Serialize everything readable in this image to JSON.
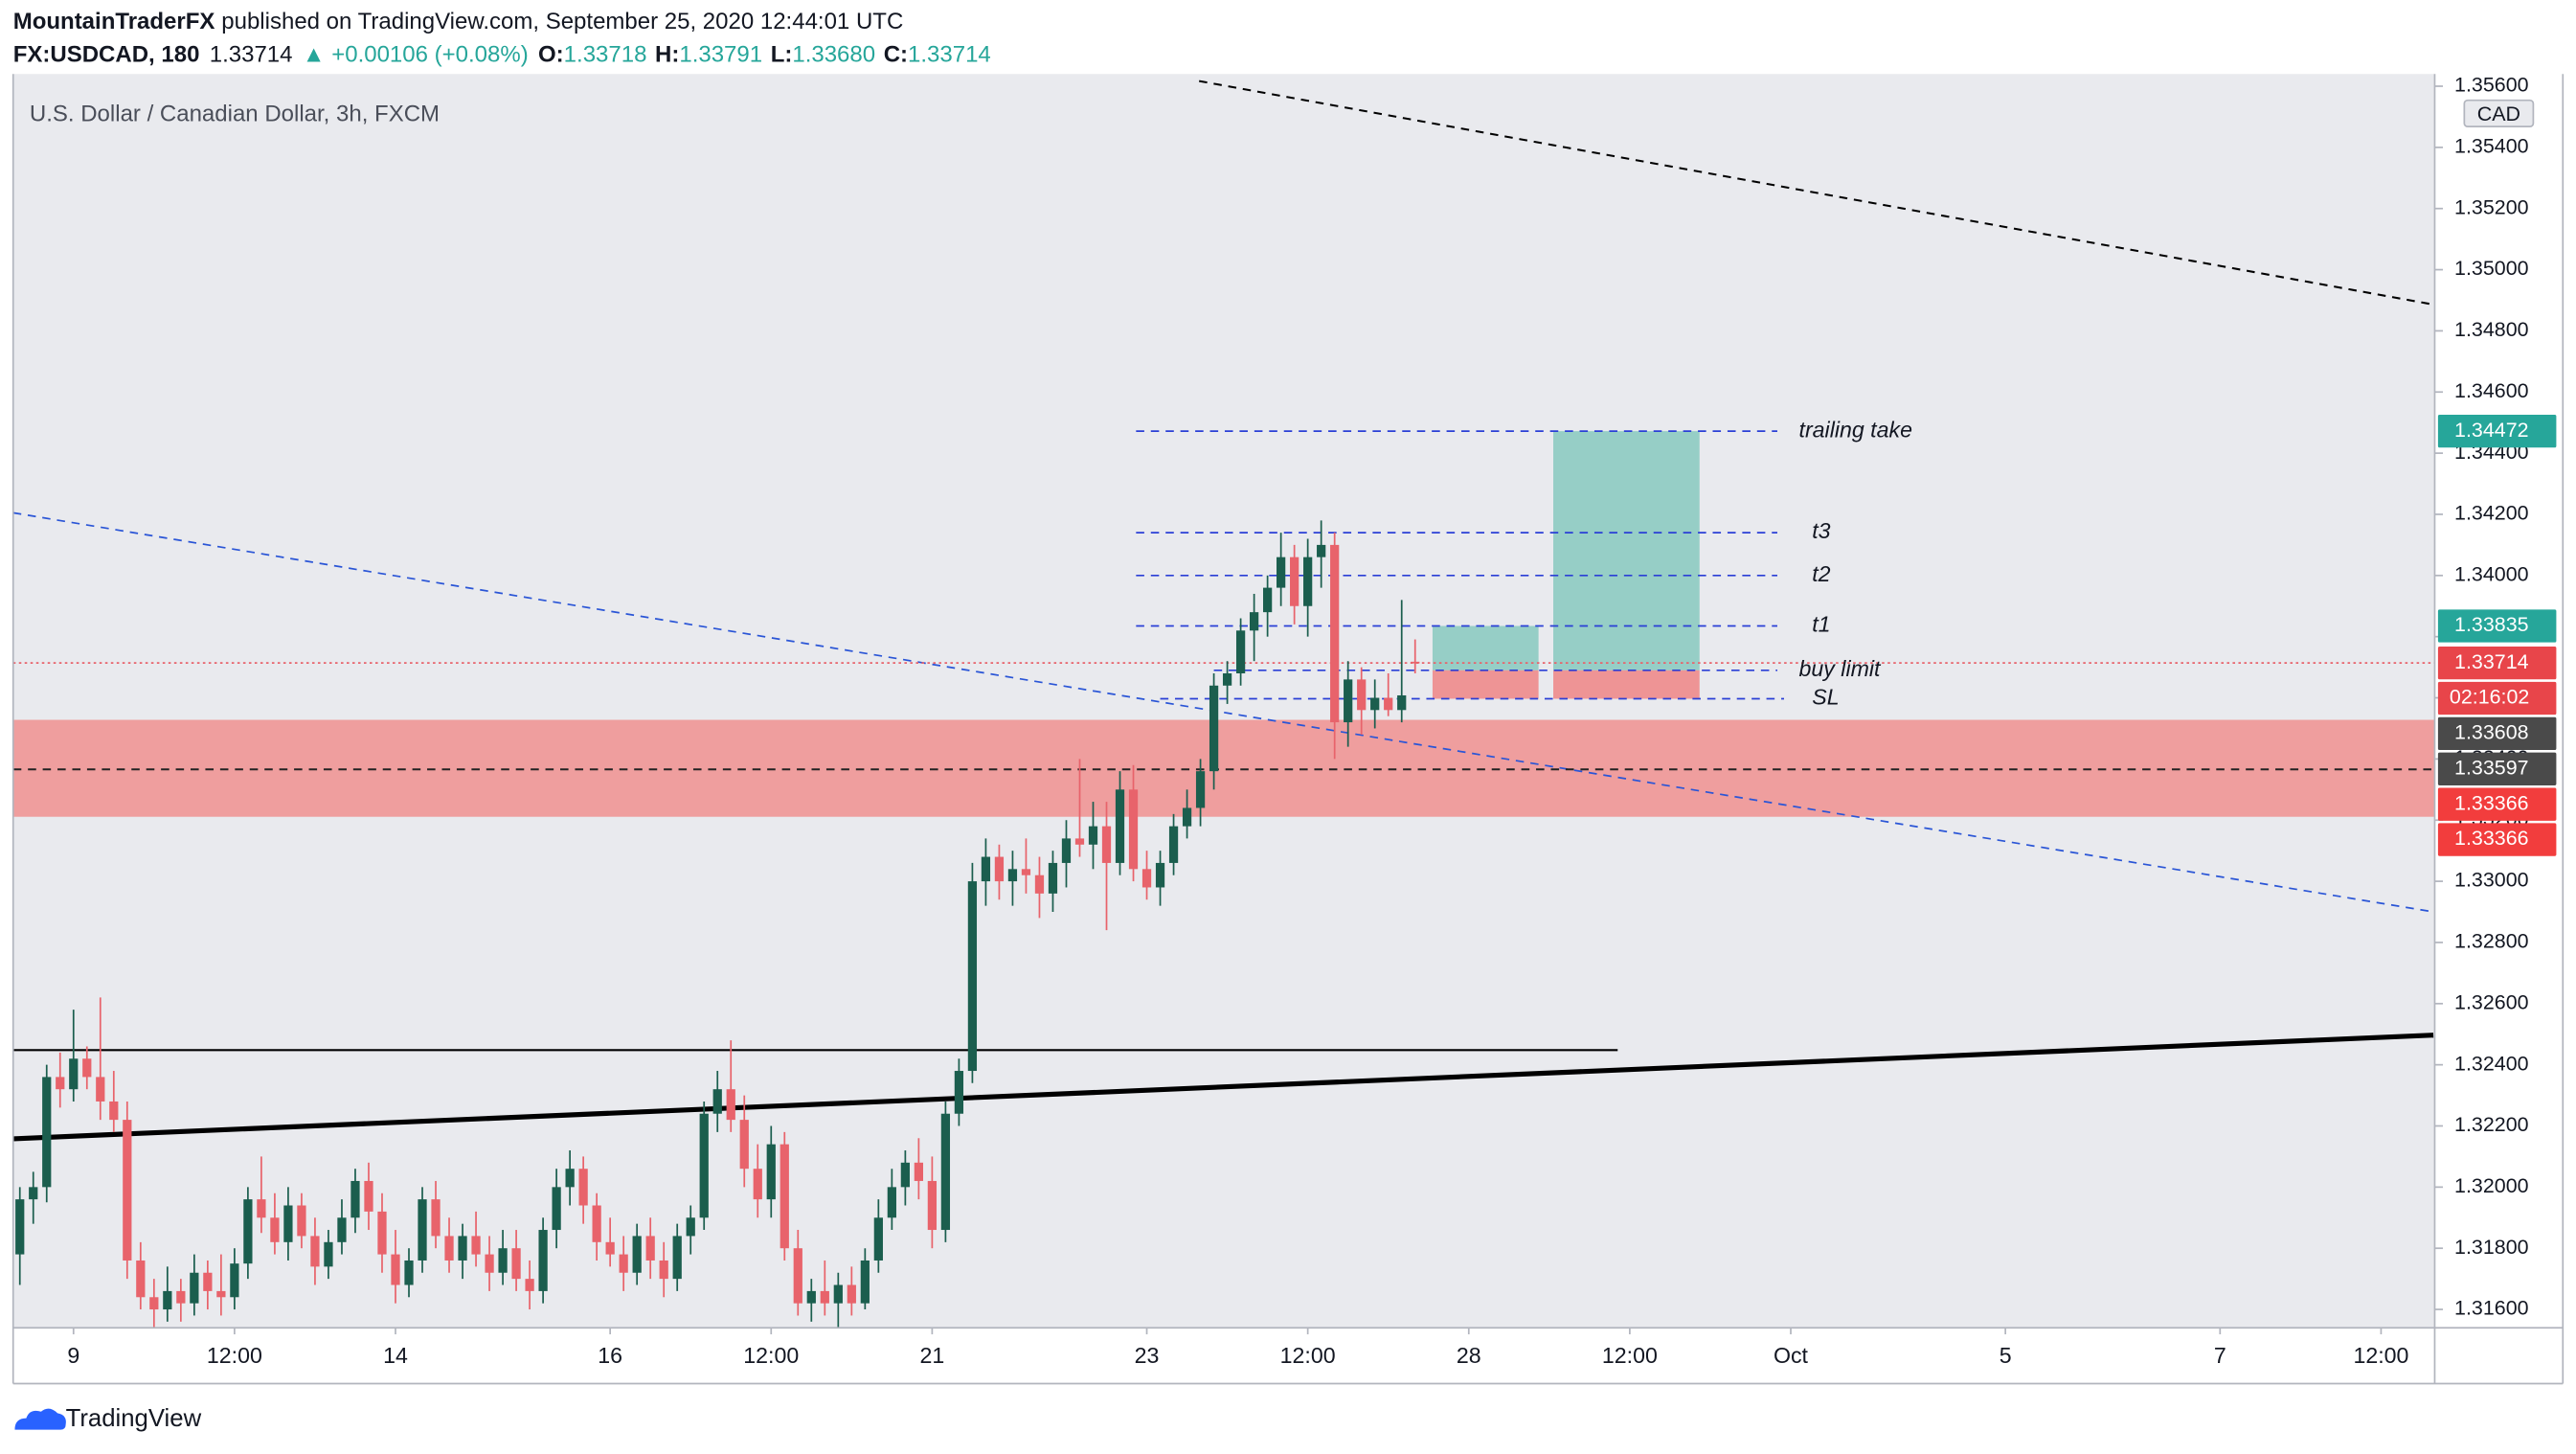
{
  "header": {
    "author": "MountainTraderFX",
    "published": "published on TradingView.com, September 25, 2020 12:44:01 UTC",
    "symbol": "FX:USDCAD, 180",
    "last": "1.33714",
    "change": "▲ +0.00106 (+0.08%)",
    "ohlc_legend": [
      {
        "key": "O:",
        "value": "1.33718"
      },
      {
        "key": "H:",
        "value": "1.33791"
      },
      {
        "key": "L:",
        "value": "1.33680"
      },
      {
        "key": "C:",
        "value": "1.33714"
      }
    ]
  },
  "footer": {
    "brand": "TradingView"
  },
  "chart_data": {
    "type": "candlestick",
    "title": "U.S. Dollar / Canadian Dollar, 3h, FXCM",
    "currency": "CAD",
    "up_color": "#1b5e4e",
    "down_color": "#e8636b",
    "xlim": [
      -0.5,
      180
    ],
    "xticks": [
      {
        "value": 4,
        "label": "9"
      },
      {
        "value": 16,
        "label": "12:00"
      },
      {
        "value": 28,
        "label": "14"
      },
      {
        "value": 44,
        "label": "16"
      },
      {
        "value": 56,
        "label": "12:00"
      },
      {
        "value": 68,
        "label": "21"
      },
      {
        "value": 84,
        "label": "23"
      },
      {
        "value": 96,
        "label": "12:00"
      },
      {
        "value": 108,
        "label": "28"
      },
      {
        "value": 120,
        "label": "12:00"
      },
      {
        "value": 132,
        "label": "Oct"
      },
      {
        "value": 148,
        "label": "5"
      },
      {
        "value": 164,
        "label": "7"
      },
      {
        "value": 176,
        "label": "12:00"
      }
    ],
    "ylim": [
      1.3154,
      1.3564
    ],
    "yticks": [
      {
        "value": 1.316,
        "label": "1.31600"
      },
      {
        "value": 1.318,
        "label": "1.31800"
      },
      {
        "value": 1.32,
        "label": "1.32000"
      },
      {
        "value": 1.322,
        "label": "1.32200"
      },
      {
        "value": 1.324,
        "label": "1.32400"
      },
      {
        "value": 1.326,
        "label": "1.32600"
      },
      {
        "value": 1.328,
        "label": "1.32800"
      },
      {
        "value": 1.33,
        "label": "1.33000"
      },
      {
        "value": 1.332,
        "label": "1.33200"
      },
      {
        "value": 1.334,
        "label": "1.33400"
      },
      {
        "value": 1.336,
        "label": "1.33600"
      },
      {
        "value": 1.338,
        "label": "1.33800"
      },
      {
        "value": 1.34,
        "label": "1.34000"
      },
      {
        "value": 1.342,
        "label": "1.34200"
      },
      {
        "value": 1.344,
        "label": "1.34400"
      },
      {
        "value": 1.346,
        "label": "1.34600"
      },
      {
        "value": 1.348,
        "label": "1.34800"
      },
      {
        "value": 1.35,
        "label": "1.35000"
      },
      {
        "value": 1.352,
        "label": "1.35200"
      },
      {
        "value": 1.354,
        "label": "1.35400"
      },
      {
        "value": 1.356,
        "label": "1.35600"
      }
    ],
    "ohlc": [
      [
        1.3178,
        1.32,
        1.3168,
        1.3196
      ],
      [
        1.3196,
        1.3205,
        1.3188,
        1.32
      ],
      [
        1.32,
        1.324,
        1.3195,
        1.3236
      ],
      [
        1.3236,
        1.3244,
        1.3226,
        1.3232
      ],
      [
        1.3232,
        1.3258,
        1.3228,
        1.3242
      ],
      [
        1.3242,
        1.3246,
        1.3232,
        1.3236
      ],
      [
        1.3236,
        1.3262,
        1.3222,
        1.3228
      ],
      [
        1.3228,
        1.3238,
        1.3218,
        1.3222
      ],
      [
        1.3222,
        1.3228,
        1.317,
        1.3176
      ],
      [
        1.3176,
        1.3182,
        1.316,
        1.3164
      ],
      [
        1.3164,
        1.317,
        1.3152,
        1.316
      ],
      [
        1.316,
        1.3174,
        1.3156,
        1.3166
      ],
      [
        1.3166,
        1.317,
        1.3156,
        1.3162
      ],
      [
        1.3162,
        1.3178,
        1.3158,
        1.3172
      ],
      [
        1.3172,
        1.3176,
        1.316,
        1.3166
      ],
      [
        1.3166,
        1.3178,
        1.3158,
        1.3164
      ],
      [
        1.3164,
        1.318,
        1.316,
        1.3175
      ],
      [
        1.3175,
        1.32,
        1.317,
        1.3196
      ],
      [
        1.3196,
        1.321,
        1.3185,
        1.319
      ],
      [
        1.319,
        1.3198,
        1.3178,
        1.3182
      ],
      [
        1.3182,
        1.32,
        1.3176,
        1.3194
      ],
      [
        1.3194,
        1.3198,
        1.318,
        1.3184
      ],
      [
        1.3184,
        1.319,
        1.3168,
        1.3174
      ],
      [
        1.3174,
        1.3186,
        1.317,
        1.3182
      ],
      [
        1.3182,
        1.3196,
        1.3178,
        1.319
      ],
      [
        1.319,
        1.3206,
        1.3185,
        1.3202
      ],
      [
        1.3202,
        1.3208,
        1.3186,
        1.3192
      ],
      [
        1.3192,
        1.3198,
        1.3172,
        1.3178
      ],
      [
        1.3178,
        1.3186,
        1.3162,
        1.3168
      ],
      [
        1.3168,
        1.318,
        1.3164,
        1.3176
      ],
      [
        1.3176,
        1.32,
        1.3172,
        1.3196
      ],
      [
        1.3196,
        1.3202,
        1.318,
        1.3184
      ],
      [
        1.3184,
        1.319,
        1.3172,
        1.3176
      ],
      [
        1.3176,
        1.3188,
        1.317,
        1.3184
      ],
      [
        1.3184,
        1.3192,
        1.3174,
        1.3178
      ],
      [
        1.3178,
        1.3184,
        1.3166,
        1.3172
      ],
      [
        1.3172,
        1.3186,
        1.3168,
        1.318
      ],
      [
        1.318,
        1.3186,
        1.3166,
        1.317
      ],
      [
        1.317,
        1.3176,
        1.316,
        1.3166
      ],
      [
        1.3166,
        1.319,
        1.3162,
        1.3186
      ],
      [
        1.3186,
        1.3206,
        1.318,
        1.32
      ],
      [
        1.32,
        1.3212,
        1.3194,
        1.3206
      ],
      [
        1.3206,
        1.321,
        1.3188,
        1.3194
      ],
      [
        1.3194,
        1.3198,
        1.3176,
        1.3182
      ],
      [
        1.3182,
        1.319,
        1.3174,
        1.3178
      ],
      [
        1.3178,
        1.3184,
        1.3166,
        1.3172
      ],
      [
        1.3172,
        1.3188,
        1.3168,
        1.3184
      ],
      [
        1.3184,
        1.319,
        1.317,
        1.3176
      ],
      [
        1.3176,
        1.3182,
        1.3164,
        1.317
      ],
      [
        1.317,
        1.3188,
        1.3166,
        1.3184
      ],
      [
        1.3184,
        1.3194,
        1.3178,
        1.319
      ],
      [
        1.319,
        1.3228,
        1.3186,
        1.3224
      ],
      [
        1.3224,
        1.3238,
        1.3218,
        1.3232
      ],
      [
        1.3232,
        1.3248,
        1.3218,
        1.3222
      ],
      [
        1.3222,
        1.323,
        1.32,
        1.3206
      ],
      [
        1.3206,
        1.3214,
        1.319,
        1.3196
      ],
      [
        1.3196,
        1.322,
        1.319,
        1.3214
      ],
      [
        1.3214,
        1.3218,
        1.3176,
        1.318
      ],
      [
        1.318,
        1.3186,
        1.3158,
        1.3162
      ],
      [
        1.3162,
        1.317,
        1.3156,
        1.3166
      ],
      [
        1.3166,
        1.3176,
        1.3158,
        1.3162
      ],
      [
        1.3162,
        1.3172,
        1.3154,
        1.3168
      ],
      [
        1.3168,
        1.3174,
        1.3158,
        1.3162
      ],
      [
        1.3162,
        1.318,
        1.316,
        1.3176
      ],
      [
        1.3176,
        1.3196,
        1.3172,
        1.319
      ],
      [
        1.319,
        1.3206,
        1.3186,
        1.32
      ],
      [
        1.32,
        1.3212,
        1.3194,
        1.3208
      ],
      [
        1.3208,
        1.3216,
        1.3196,
        1.3202
      ],
      [
        1.3202,
        1.321,
        1.318,
        1.3186
      ],
      [
        1.3186,
        1.3228,
        1.3182,
        1.3224
      ],
      [
        1.3224,
        1.3242,
        1.322,
        1.3238
      ],
      [
        1.3238,
        1.3306,
        1.3234,
        1.33
      ],
      [
        1.33,
        1.3314,
        1.3292,
        1.3308
      ],
      [
        1.3308,
        1.3312,
        1.3294,
        1.33
      ],
      [
        1.33,
        1.331,
        1.3292,
        1.3304
      ],
      [
        1.3304,
        1.3314,
        1.3296,
        1.3302
      ],
      [
        1.3302,
        1.3308,
        1.3288,
        1.3296
      ],
      [
        1.3296,
        1.331,
        1.329,
        1.3306
      ],
      [
        1.3306,
        1.332,
        1.3298,
        1.3314
      ],
      [
        1.3314,
        1.334,
        1.3308,
        1.3312
      ],
      [
        1.3312,
        1.3326,
        1.3304,
        1.3318
      ],
      [
        1.3318,
        1.3326,
        1.3284,
        1.3306
      ],
      [
        1.3306,
        1.3336,
        1.3302,
        1.333
      ],
      [
        1.333,
        1.3338,
        1.33,
        1.3304
      ],
      [
        1.3304,
        1.331,
        1.3294,
        1.3298
      ],
      [
        1.3298,
        1.331,
        1.3292,
        1.3306
      ],
      [
        1.3306,
        1.3322,
        1.3302,
        1.3318
      ],
      [
        1.3318,
        1.333,
        1.3314,
        1.3324
      ],
      [
        1.3324,
        1.334,
        1.3318,
        1.3336
      ],
      [
        1.3336,
        1.3368,
        1.333,
        1.3364
      ],
      [
        1.3364,
        1.3372,
        1.3358,
        1.3368
      ],
      [
        1.3368,
        1.3386,
        1.3364,
        1.3382
      ],
      [
        1.3382,
        1.3394,
        1.3372,
        1.3388
      ],
      [
        1.3388,
        1.34,
        1.338,
        1.3396
      ],
      [
        1.3396,
        1.3414,
        1.339,
        1.3406
      ],
      [
        1.3406,
        1.341,
        1.3384,
        1.339
      ],
      [
        1.339,
        1.3412,
        1.338,
        1.3406
      ],
      [
        1.3406,
        1.3418,
        1.3396,
        1.341
      ],
      [
        1.341,
        1.3414,
        1.334,
        1.3352
      ],
      [
        1.3352,
        1.3372,
        1.3344,
        1.3366
      ],
      [
        1.3366,
        1.337,
        1.3348,
        1.3356
      ],
      [
        1.3356,
        1.3366,
        1.335,
        1.336
      ],
      [
        1.336,
        1.3368,
        1.3354,
        1.3356
      ],
      [
        1.3356,
        1.3392,
        1.3352,
        1.33608
      ],
      [
        1.33718,
        1.33791,
        1.3368,
        1.33714
      ]
    ],
    "zone": {
      "top": 1.33528,
      "bottom": 1.33211,
      "color": "#f0908f"
    },
    "trend_lines": [
      {
        "x": [
          87.9,
          179.9
        ],
        "y": [
          1.35617,
          1.34886
        ],
        "color": "#000000",
        "style": "dashed",
        "width": 1.2
      },
      {
        "x": [
          -0.5,
          179.9
        ],
        "y": [
          1.34205,
          1.329
        ],
        "color": "#2a55d6",
        "style": "dashed",
        "width": 1
      },
      {
        "x": [
          -0.5,
          179.9
        ],
        "y": [
          1.32158,
          1.32497
        ],
        "color": "#000000",
        "style": "solid",
        "width": 3
      },
      {
        "x": [
          -0.5,
          119.1
        ],
        "y": [
          1.32448,
          1.32448
        ],
        "color": "#000000",
        "style": "solid",
        "width": 1.2
      },
      {
        "x": [
          -0.5,
          179.9
        ],
        "y": [
          1.33366,
          1.33366
        ],
        "color": "#222222",
        "style": "dashed",
        "width": 1.2
      }
    ],
    "current_price": {
      "value": 1.33714,
      "color": "#e8636b"
    },
    "levels": [
      {
        "label": "trailing take",
        "value": 1.34472,
        "x": [
          83.2,
          131
        ]
      },
      {
        "label": "t3",
        "value": 1.3414,
        "x": [
          83.2,
          131
        ]
      },
      {
        "label": "t2",
        "value": 1.34,
        "x": [
          83.2,
          131
        ]
      },
      {
        "label": "t1",
        "value": 1.33835,
        "x": [
          83.2,
          131
        ]
      },
      {
        "label": "buy limit",
        "value": 1.3369,
        "x": [
          89,
          131
        ]
      },
      {
        "label": "SL",
        "value": 1.33597,
        "x": [
          85,
          131.5
        ]
      }
    ],
    "positions": [
      {
        "x": [
          105.3,
          113.2
        ],
        "target": 1.33835,
        "entry": 1.3369,
        "stop": 1.33597
      },
      {
        "x": [
          114.3,
          125.2
        ],
        "target": 1.34472,
        "entry": 1.3369,
        "stop": 1.33597
      }
    ],
    "price_labels": [
      {
        "value": 1.34472,
        "label": "1.34472",
        "color": "#26a69a"
      },
      {
        "value": 1.33835,
        "label": "1.33835",
        "color": "#26a69a"
      },
      {
        "value": 1.33714,
        "label": "1.33714",
        "color": "#e8454a",
        "countdown": "02:16:02"
      },
      {
        "value": 1.33608,
        "label": "1.33608",
        "color": "#4a4a4a"
      },
      {
        "value": 1.33597,
        "label": "1.33597",
        "color": "#4a4a4a"
      },
      {
        "value": 1.33366,
        "label": "1.33366",
        "color": "#f23d3d"
      },
      {
        "value": 1.33366,
        "label": "1.33366",
        "color": "#f23d3d"
      }
    ]
  }
}
